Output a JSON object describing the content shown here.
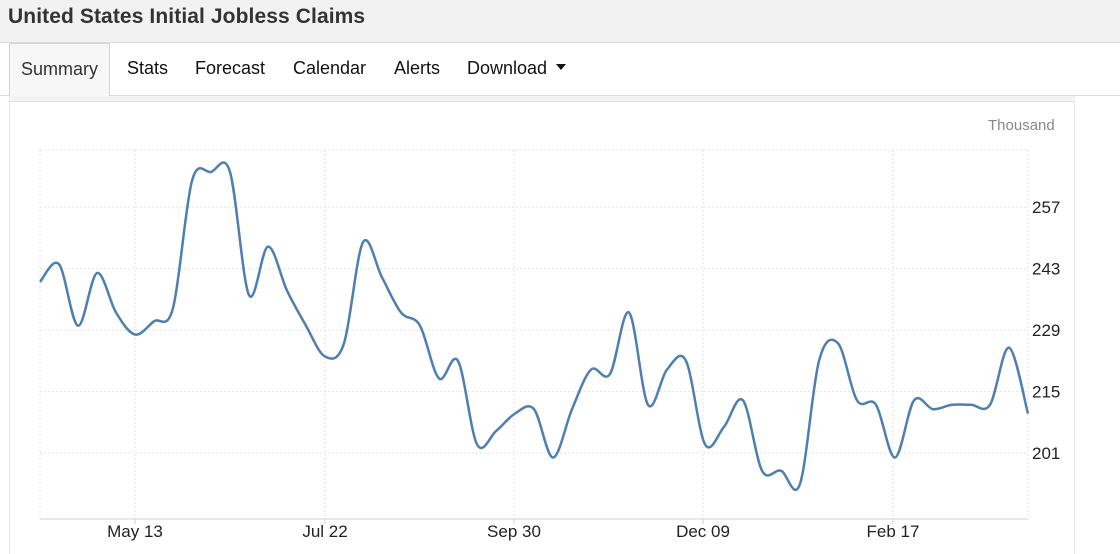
{
  "header": {
    "title": "United States Initial Jobless Claims"
  },
  "tabs": [
    {
      "label": "Summary",
      "active": true
    },
    {
      "label": "Stats"
    },
    {
      "label": "Forecast"
    },
    {
      "label": "Calendar"
    },
    {
      "label": "Alerts"
    },
    {
      "label": "Download",
      "dropdown": true
    }
  ],
  "colors": {
    "line": "#4f7fb0",
    "grid": "#e3e3e3",
    "axis": "#d0d0d0"
  },
  "chart_data": {
    "type": "line",
    "unit_label": "Thousand",
    "y_ticks": [
      "257",
      "243",
      "229",
      "215",
      "201"
    ],
    "x_ticks": [
      "May 13",
      "Jul 22",
      "Sep 30",
      "Dec 09",
      "Feb 17"
    ],
    "ylim": [
      186,
      270
    ],
    "grid": true,
    "series": [
      {
        "values": [
          240,
          244,
          230,
          242,
          233,
          228,
          231,
          234,
          263,
          265,
          265,
          237,
          248,
          238,
          230,
          223,
          226,
          249,
          241,
          233,
          230,
          218,
          222,
          203,
          206,
          210,
          211,
          200,
          211,
          220,
          219,
          233,
          212,
          220,
          222,
          203,
          207,
          213,
          197,
          197,
          194,
          222,
          226,
          213,
          212,
          200,
          213,
          211,
          212,
          212,
          212,
          225,
          210
        ]
      }
    ]
  }
}
